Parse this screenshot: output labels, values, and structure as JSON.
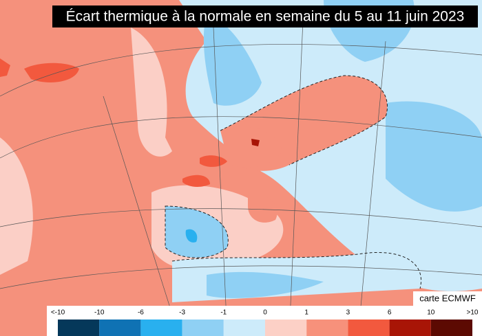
{
  "title": "Écart thermique à la normale en semaine du 5 au 11 juin 2023",
  "credit": "carte ECMWF",
  "legend": {
    "labels": [
      "<-10",
      "-10",
      "-6",
      "-3",
      "-1",
      "0",
      "1",
      "3",
      "6",
      "10",
      ">10"
    ],
    "colors": [
      "#05385a",
      "#0f72b4",
      "#29b0ef",
      "#8fd0f4",
      "#cdebfa",
      "#fcd0c6",
      "#f7917b",
      "#f2593e",
      "#a81506",
      "#5c0a02"
    ]
  }
}
